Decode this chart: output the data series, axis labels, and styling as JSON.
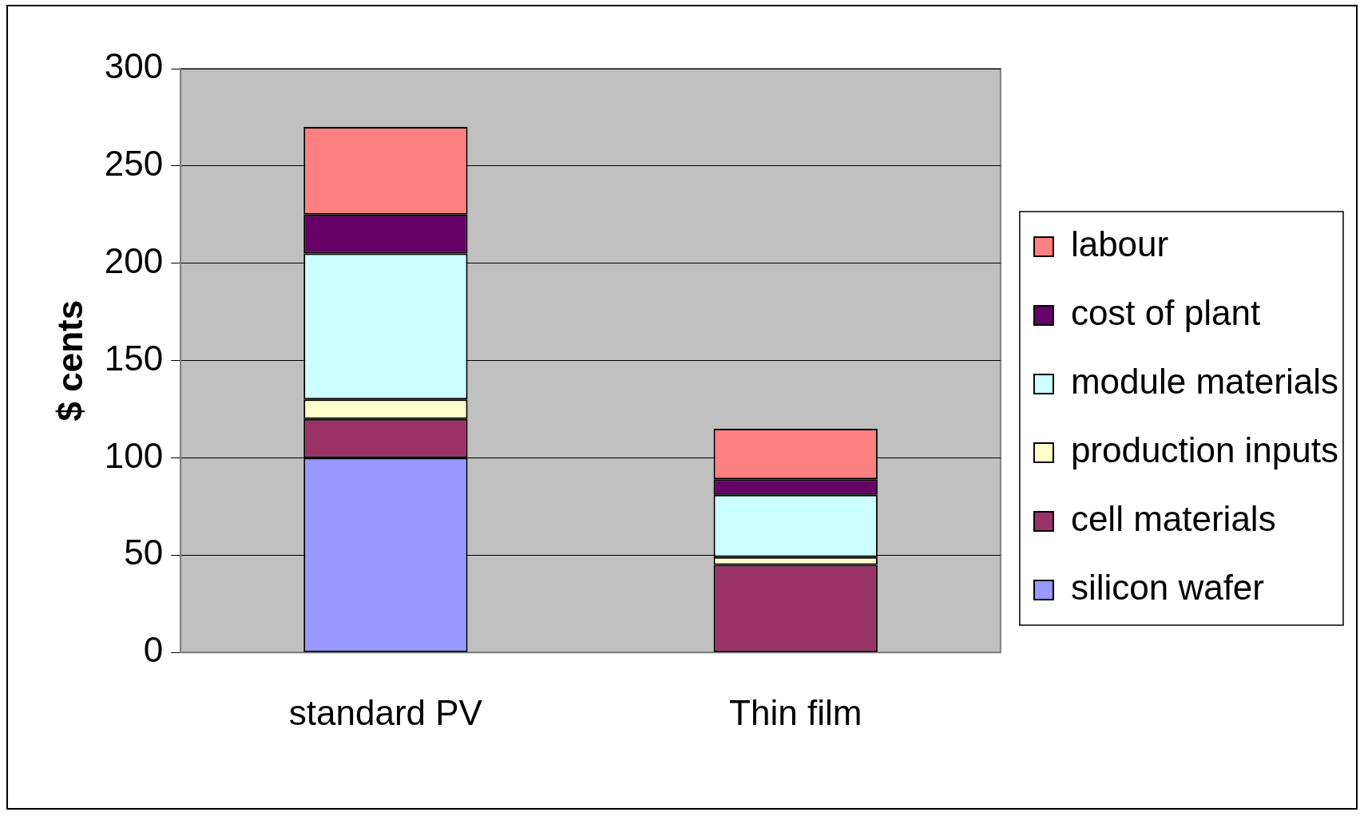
{
  "chart_data": {
    "type": "bar",
    "stacked": true,
    "ylabel": "$ cents",
    "categories": [
      "standard PV",
      "Thin film"
    ],
    "series": [
      {
        "name": "silicon wafer",
        "color": "#9999ff",
        "values": [
          100,
          0
        ]
      },
      {
        "name": "cell materials",
        "color": "#993366",
        "values": [
          20,
          45
        ]
      },
      {
        "name": "production inputs",
        "color": "#ffffcc",
        "values": [
          10,
          4
        ]
      },
      {
        "name": "module materials",
        "color": "#ccffff",
        "values": [
          75,
          32
        ]
      },
      {
        "name": "cost of plant",
        "color": "#660066",
        "values": [
          20,
          8
        ]
      },
      {
        "name": "labour",
        "color": "#ff8080",
        "values": [
          45,
          26
        ]
      }
    ],
    "ylim": [
      0,
      300
    ],
    "yticks": [
      0,
      50,
      100,
      150,
      200,
      250,
      300
    ],
    "grid": "y",
    "legend": "right"
  }
}
